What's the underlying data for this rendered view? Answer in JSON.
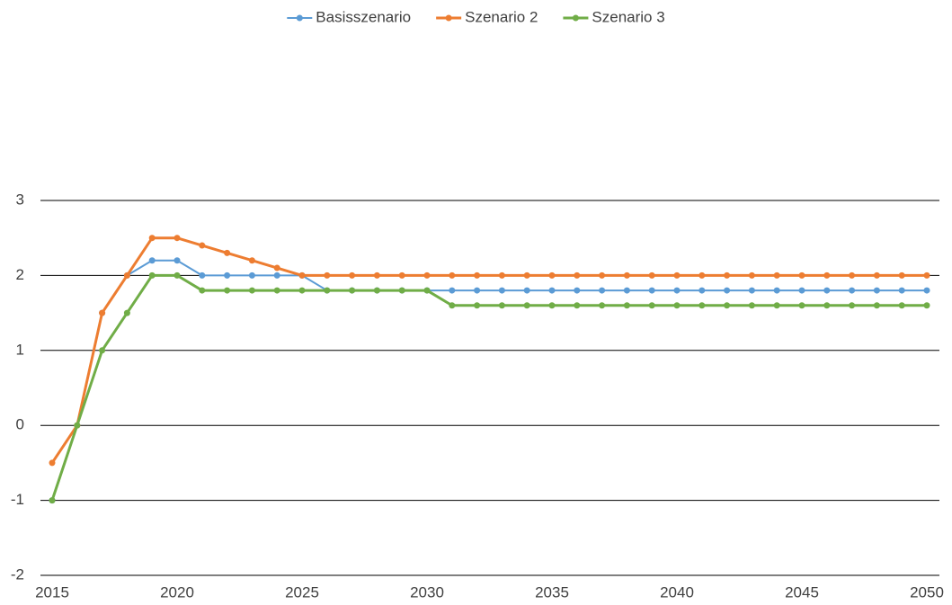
{
  "chart_data": {
    "type": "line",
    "x": [
      2015,
      2016,
      2017,
      2018,
      2019,
      2020,
      2021,
      2022,
      2023,
      2024,
      2025,
      2026,
      2027,
      2028,
      2029,
      2030,
      2031,
      2032,
      2033,
      2034,
      2035,
      2036,
      2037,
      2038,
      2039,
      2040,
      2041,
      2042,
      2043,
      2044,
      2045,
      2046,
      2047,
      2048,
      2049,
      2050
    ],
    "series": [
      {
        "name": "Basisszenario",
        "color": "#5b9bd5",
        "values": [
          -1,
          0,
          1.5,
          2,
          2.2,
          2.2,
          2,
          2,
          2,
          2,
          2,
          1.8,
          1.8,
          1.8,
          1.8,
          1.8,
          1.8,
          1.8,
          1.8,
          1.8,
          1.8,
          1.8,
          1.8,
          1.8,
          1.8,
          1.8,
          1.8,
          1.8,
          1.8,
          1.8,
          1.8,
          1.8,
          1.8,
          1.8,
          1.8,
          1.8
        ]
      },
      {
        "name": "Szenario 2",
        "color": "#ed7d31",
        "values": [
          -0.5,
          0,
          1.5,
          2,
          2.5,
          2.5,
          2.4,
          2.3,
          2.2,
          2.1,
          2,
          2,
          2,
          2,
          2,
          2,
          2,
          2,
          2,
          2,
          2,
          2,
          2,
          2,
          2,
          2,
          2,
          2,
          2,
          2,
          2,
          2,
          2,
          2,
          2,
          2
        ]
      },
      {
        "name": "Szenario 3",
        "color": "#70ad47",
        "values": [
          -1,
          0,
          1,
          1.5,
          2,
          2,
          1.8,
          1.8,
          1.8,
          1.8,
          1.8,
          1.8,
          1.8,
          1.8,
          1.8,
          1.8,
          1.6,
          1.6,
          1.6,
          1.6,
          1.6,
          1.6,
          1.6,
          1.6,
          1.6,
          1.6,
          1.6,
          1.6,
          1.6,
          1.6,
          1.6,
          1.6,
          1.6,
          1.6,
          1.6,
          1.6
        ]
      }
    ],
    "xlim": [
      2015,
      2050
    ],
    "xticks": [
      2015,
      2020,
      2025,
      2030,
      2035,
      2040,
      2045,
      2050
    ],
    "ylim": [
      -2,
      3
    ],
    "yticks": [
      -2,
      -1,
      0,
      1,
      2,
      3
    ],
    "grid": true,
    "legend": "top"
  }
}
